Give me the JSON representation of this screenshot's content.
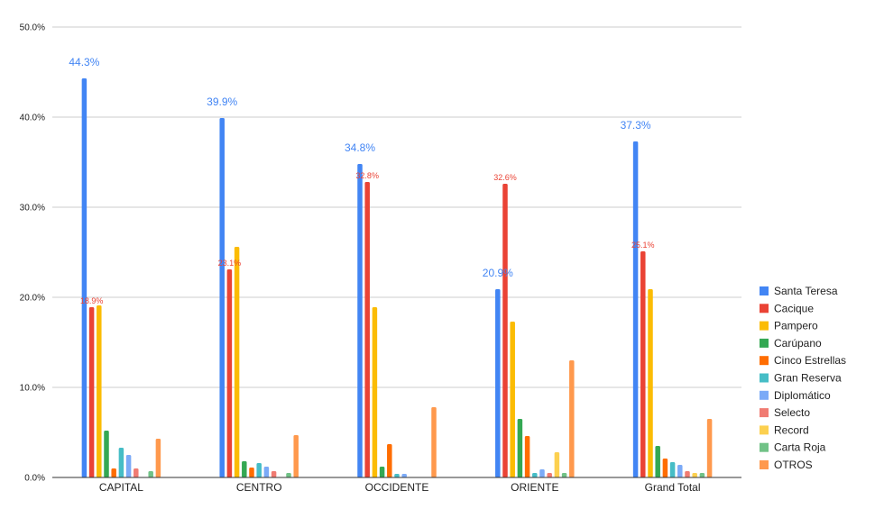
{
  "chart_data": {
    "type": "bar",
    "categories": [
      "CAPITAL",
      "CENTRO",
      "OCCIDENTE",
      "ORIENTE",
      "Grand Total"
    ],
    "ylim": [
      0,
      50
    ],
    "yticks": [
      "0.0%",
      "10.0%",
      "20.0%",
      "30.0%",
      "40.0%",
      "50.0%"
    ],
    "grid": true,
    "legend_position": "right",
    "series": [
      {
        "name": "Santa Teresa",
        "color": "#4285F4",
        "values": [
          44.3,
          39.9,
          34.8,
          20.9,
          37.3
        ]
      },
      {
        "name": "Cacique",
        "color": "#EA4335",
        "values": [
          18.9,
          23.1,
          32.8,
          32.6,
          25.1
        ]
      },
      {
        "name": "Pampero",
        "color": "#FBBC04",
        "values": [
          19.1,
          25.6,
          18.9,
          17.3,
          20.9
        ]
      },
      {
        "name": "Carúpano",
        "color": "#34A853",
        "values": [
          5.2,
          1.8,
          1.2,
          6.5,
          3.5
        ]
      },
      {
        "name": "Cinco Estrellas",
        "color": "#FF6D01",
        "values": [
          1.0,
          1.1,
          3.7,
          4.6,
          2.1
        ]
      },
      {
        "name": "Gran Reserva",
        "color": "#46BDC6",
        "values": [
          3.3,
          1.6,
          0.4,
          0.5,
          1.7
        ]
      },
      {
        "name": "Diplomático",
        "color": "#7BAAF7",
        "values": [
          2.5,
          1.2,
          0.4,
          0.9,
          1.4
        ]
      },
      {
        "name": "Selecto",
        "color": "#F07B72",
        "values": [
          1.0,
          0.7,
          0.0,
          0.5,
          0.7
        ]
      },
      {
        "name": "Record",
        "color": "#FCD04F",
        "values": [
          0.0,
          0.0,
          0.0,
          2.8,
          0.5
        ]
      },
      {
        "name": "Carta Roja",
        "color": "#71C287",
        "values": [
          0.7,
          0.5,
          0.0,
          0.5,
          0.5
        ]
      },
      {
        "name": "OTROS",
        "color": "#FF994D",
        "values": [
          4.3,
          4.7,
          7.8,
          13.0,
          6.5
        ]
      }
    ],
    "data_labels": [
      {
        "series": "Santa Teresa",
        "category": "CAPITAL",
        "text": "44.3%",
        "size": "big"
      },
      {
        "series": "Santa Teresa",
        "category": "CENTRO",
        "text": "39.9%",
        "size": "big"
      },
      {
        "series": "Santa Teresa",
        "category": "OCCIDENTE",
        "text": "34.8%",
        "size": "big"
      },
      {
        "series": "Santa Teresa",
        "category": "ORIENTE",
        "text": "20.9%",
        "size": "big"
      },
      {
        "series": "Santa Teresa",
        "category": "Grand Total",
        "text": "37.3%",
        "size": "big"
      },
      {
        "series": "Cacique",
        "category": "CAPITAL",
        "text": "18.9%",
        "size": "small"
      },
      {
        "series": "Cacique",
        "category": "CENTRO",
        "text": "23.1%",
        "size": "small"
      },
      {
        "series": "Cacique",
        "category": "OCCIDENTE",
        "text": "32.8%",
        "size": "small"
      },
      {
        "series": "Cacique",
        "category": "ORIENTE",
        "text": "32.6%",
        "size": "small"
      },
      {
        "series": "Cacique",
        "category": "Grand Total",
        "text": "25.1%",
        "size": "small"
      }
    ]
  }
}
